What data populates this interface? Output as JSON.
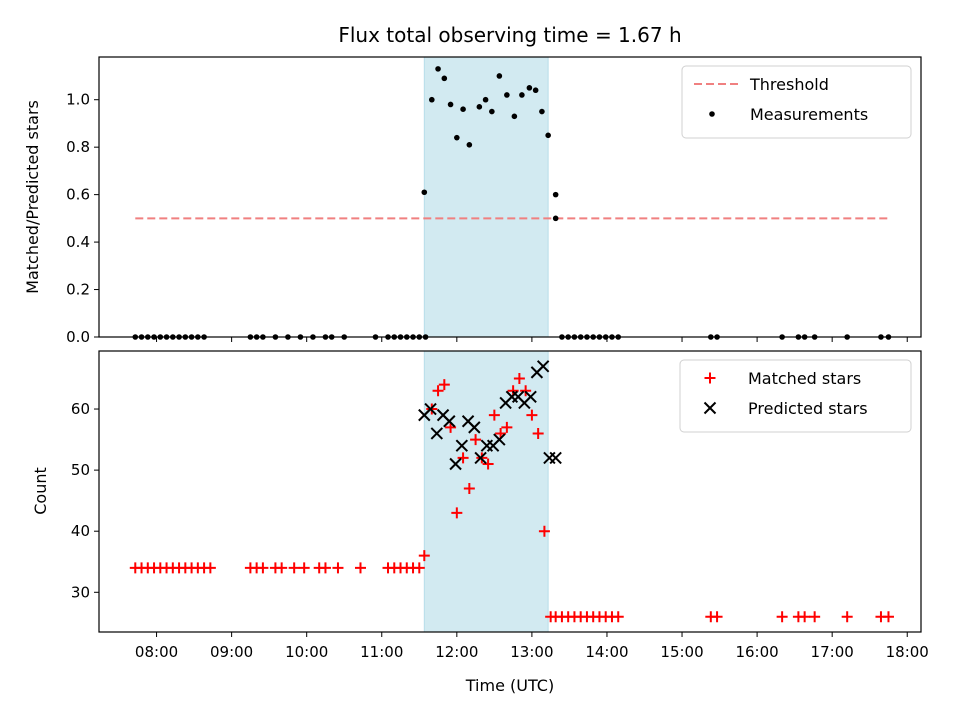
{
  "chart_data": [
    {
      "type": "scatter",
      "title": "Flux total observing time = 1.67 h",
      "xlabel": "",
      "ylabel": "Matched/Predicted stars",
      "ylim": [
        0,
        1.18
      ],
      "yticks": [
        0.0,
        0.2,
        0.4,
        0.6,
        0.8,
        1.0
      ],
      "ytick_labels": [
        "0.0",
        "0.2",
        "0.4",
        "0.6",
        "0.8",
        "1.0"
      ],
      "grid": false,
      "legend_position": "top-right",
      "shaded_interval": [
        "11:34",
        "13:13"
      ],
      "shade_color": "#add8e6",
      "threshold": {
        "name": "Threshold",
        "value": 0.5,
        "x_range": [
          "07:43",
          "17:46"
        ],
        "color": "#f08080",
        "style": "dashed"
      },
      "series": [
        {
          "name": "Measurements",
          "color": "#000000",
          "marker": "dot",
          "x": [
            "07:43",
            "07:48",
            "07:53",
            "07:58",
            "08:03",
            "08:08",
            "08:13",
            "08:18",
            "08:23",
            "08:28",
            "08:33",
            "08:38",
            "09:15",
            "09:20",
            "09:25",
            "09:35",
            "09:45",
            "09:55",
            "10:05",
            "10:15",
            "10:20",
            "10:30",
            "10:55",
            "11:05",
            "11:10",
            "11:15",
            "11:20",
            "11:25",
            "11:30",
            "11:35",
            "11:34",
            "11:40",
            "11:45",
            "11:50",
            "11:55",
            "12:00",
            "12:05",
            "12:10",
            "12:18",
            "12:23",
            "12:28",
            "12:34",
            "12:40",
            "12:46",
            "12:52",
            "12:58",
            "13:03",
            "13:08",
            "13:13",
            "13:19",
            "13:19",
            "13:24",
            "13:29",
            "13:34",
            "13:39",
            "13:44",
            "13:49",
            "13:54",
            "13:59",
            "14:04",
            "14:09",
            "15:23",
            "15:28",
            "16:20",
            "16:33",
            "16:38",
            "16:46",
            "17:12",
            "17:39",
            "17:45"
          ],
          "y": [
            0,
            0,
            0,
            0,
            0,
            0,
            0,
            0,
            0,
            0,
            0,
            0,
            0,
            0,
            0,
            0,
            0,
            0,
            0,
            0,
            0,
            0,
            0,
            0,
            0,
            0,
            0,
            0,
            0,
            0,
            0.61,
            1.0,
            1.13,
            1.09,
            0.98,
            0.84,
            0.96,
            0.81,
            0.97,
            1.0,
            0.95,
            1.1,
            1.02,
            0.93,
            1.02,
            1.05,
            1.04,
            0.95,
            0.85,
            0.6,
            0.5,
            0,
            0,
            0,
            0,
            0,
            0,
            0,
            0,
            0,
            0,
            0,
            0,
            0,
            0,
            0,
            0,
            0,
            0,
            0
          ]
        }
      ]
    },
    {
      "type": "scatter",
      "title": "",
      "xlabel": "Time (UTC)",
      "ylabel": "Count",
      "xlim": [
        "07:14",
        "18:11"
      ],
      "ylim": [
        23.5,
        69.5
      ],
      "yticks": [
        30,
        40,
        50,
        60
      ],
      "ytick_labels": [
        "30",
        "40",
        "50",
        "60"
      ],
      "xticks": [
        "08:00",
        "09:00",
        "10:00",
        "11:00",
        "12:00",
        "13:00",
        "14:00",
        "15:00",
        "16:00",
        "17:00",
        "18:00"
      ],
      "grid": false,
      "legend_position": "top-right",
      "shaded_interval": [
        "11:34",
        "13:13"
      ],
      "shade_color": "#add8e6",
      "series": [
        {
          "name": "Matched stars",
          "color": "#ff0000",
          "marker": "plus",
          "x": [
            "07:43",
            "07:48",
            "07:53",
            "07:58",
            "08:03",
            "08:08",
            "08:13",
            "08:18",
            "08:23",
            "08:28",
            "08:33",
            "08:38",
            "08:43",
            "09:15",
            "09:20",
            "09:25",
            "09:35",
            "09:40",
            "09:50",
            "09:58",
            "10:10",
            "10:15",
            "10:25",
            "10:43",
            "11:05",
            "11:10",
            "11:15",
            "11:20",
            "11:25",
            "11:30",
            "11:34",
            "11:40",
            "11:45",
            "11:50",
            "11:55",
            "12:00",
            "12:05",
            "12:10",
            "12:15",
            "12:20",
            "12:25",
            "12:30",
            "12:35",
            "12:40",
            "12:45",
            "12:50",
            "12:55",
            "13:00",
            "13:05",
            "13:10",
            "13:15",
            "13:19",
            "13:24",
            "13:29",
            "13:34",
            "13:39",
            "13:44",
            "13:49",
            "13:54",
            "13:59",
            "14:04",
            "14:09",
            "15:23",
            "15:28",
            "16:20",
            "16:33",
            "16:38",
            "16:46",
            "17:12",
            "17:39",
            "17:45"
          ],
          "y": [
            34,
            34,
            34,
            34,
            34,
            34,
            34,
            34,
            34,
            34,
            34,
            34,
            34,
            34,
            34,
            34,
            34,
            34,
            34,
            34,
            34,
            34,
            34,
            34,
            34,
            34,
            34,
            34,
            34,
            34,
            36,
            60,
            63,
            64,
            57,
            43,
            52,
            47,
            55,
            52,
            51,
            59,
            56,
            57,
            63,
            65,
            63,
            59,
            56,
            40,
            26,
            26,
            26,
            26,
            26,
            26,
            26,
            26,
            26,
            26,
            26,
            26,
            26,
            26,
            26,
            26,
            26,
            26,
            26,
            26,
            26
          ]
        },
        {
          "name": "Predicted stars",
          "color": "#000000",
          "marker": "x",
          "x": [
            "11:34",
            "11:39",
            "11:44",
            "11:49",
            "11:54",
            "11:59",
            "12:04",
            "12:09",
            "12:14",
            "12:19",
            "12:24",
            "12:29",
            "12:34",
            "12:39",
            "12:44",
            "12:49",
            "12:54",
            "12:59",
            "13:04",
            "13:09",
            "13:14",
            "13:19"
          ],
          "y": [
            59,
            60,
            56,
            59,
            58,
            51,
            54,
            58,
            57,
            52,
            54,
            54,
            55,
            61,
            62,
            62,
            61,
            62,
            66,
            67,
            52,
            52
          ]
        }
      ]
    }
  ]
}
